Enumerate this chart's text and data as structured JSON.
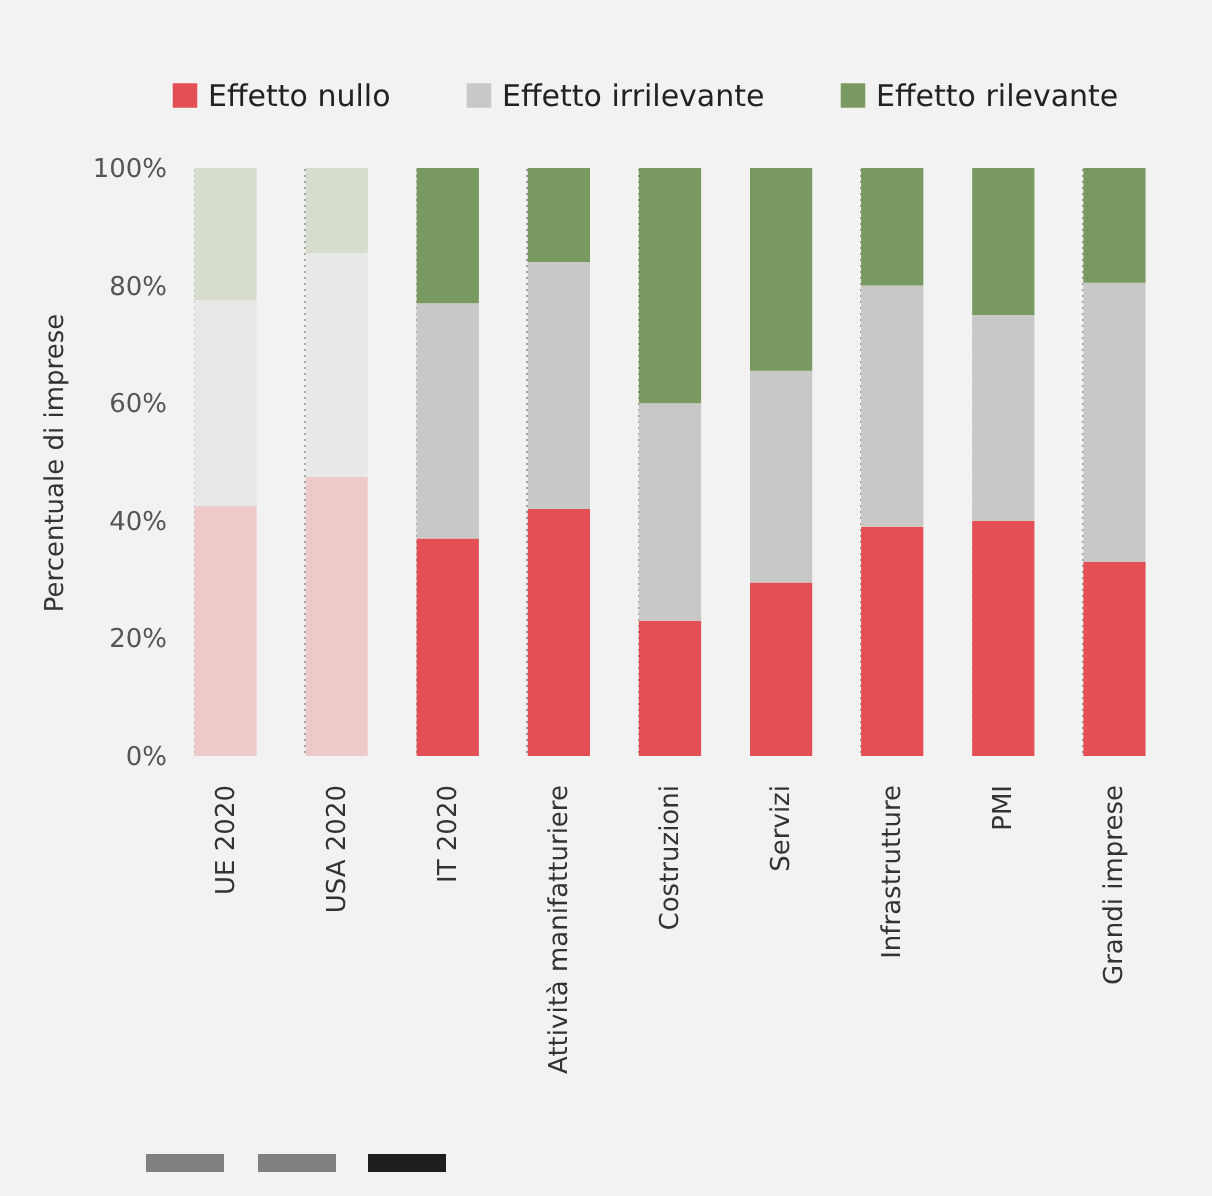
{
  "chart_data": {
    "type": "bar",
    "stacked": true,
    "ylabel": "Percentuale di imprese",
    "categories": [
      "UE 2020",
      "USA 2020",
      "IT 2020",
      "Attività manifatturiere",
      "Costruzioni",
      "Servizi",
      "Infrastrutture",
      "PMI",
      "Grandi imprese"
    ],
    "series": [
      {
        "name": "Effetto nullo",
        "color": "#e34f54",
        "colors": [
          "#eec9c9",
          "#eec9c9",
          "#e34f54",
          "#e34f54",
          "#e34f54",
          "#e34f54",
          "#e34f54",
          "#e34f54",
          "#e34f54"
        ],
        "values": [
          42.5,
          47.5,
          37,
          42,
          23,
          29.5,
          39,
          40,
          33
        ]
      },
      {
        "name": "Effetto irrilevante",
        "color": "#c8c8c6",
        "colors": [
          "#e8e8e8",
          "#e8e8e8",
          "#c8c8c6",
          "#c8c8c6",
          "#c8c8c6",
          "#c8c8c6",
          "#c8c8c6",
          "#c8c8c6",
          "#c8c8c6"
        ],
        "values": [
          35,
          38,
          40,
          42,
          37,
          36,
          41,
          35,
          47.5
        ]
      },
      {
        "name": "Effetto rilevante",
        "color": "#789a61",
        "colors": [
          "#d6ddcf",
          "#d6ddcf",
          "#789a61",
          "#789a61",
          "#789a61",
          "#789a61",
          "#789a61",
          "#789a61",
          "#789a61"
        ],
        "values": [
          22.5,
          14.5,
          23,
          16,
          40,
          34.5,
          20,
          25,
          19.5
        ]
      }
    ],
    "ylim": [
      0,
      100
    ],
    "yticks": [
      {
        "value": 0,
        "label": "0%"
      },
      {
        "value": 20,
        "label": "20%"
      },
      {
        "value": 40,
        "label": "40%"
      },
      {
        "value": 60,
        "label": "60%"
      },
      {
        "value": 80,
        "label": "80%"
      },
      {
        "value": 100,
        "label": "100%"
      }
    ],
    "grid": "x",
    "legend": "top left"
  }
}
